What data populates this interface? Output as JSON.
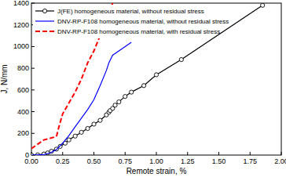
{
  "chart_data": {
    "type": "line",
    "x_label": "Remote strain, %",
    "y_label": "J, N/mm",
    "xlim": [
      0,
      2
    ],
    "ylim": [
      0,
      1400
    ],
    "xticks": [
      {
        "value": 0,
        "label": "0.00"
      },
      0.25,
      {
        "value": 0.5,
        "label": "0.50"
      },
      0.75,
      {
        "value": 1,
        "label": "1.00"
      },
      1.25,
      {
        "value": 1.5,
        "label": "1.50"
      },
      1.75,
      {
        "value": 2,
        "label": "2.00"
      }
    ],
    "yticks": [
      0,
      200,
      400,
      600,
      800,
      1000,
      1200,
      1400
    ],
    "grid": false,
    "legend": "upper left",
    "series": [
      {
        "name": "J(FE) homogeneous material, without residual stress",
        "color": "#000000",
        "marker": "circle",
        "line_style": "solid",
        "x": [
          0,
          0.05,
          0.1,
          0.13,
          0.16,
          0.2,
          0.23,
          0.27,
          0.3,
          0.35,
          0.4,
          0.45,
          0.5,
          0.55,
          0.6,
          0.62,
          0.63,
          0.65,
          0.67,
          0.7,
          0.75,
          0.8,
          0.9,
          1.0,
          1.2,
          1.85
        ],
        "values": [
          0,
          2,
          10,
          20,
          35,
          55,
          80,
          110,
          140,
          175,
          210,
          245,
          285,
          320,
          370,
          395,
          410,
          430,
          460,
          490,
          540,
          580,
          640,
          740,
          880,
          1380
        ]
      },
      {
        "name": "DNV-RP-F108 homogeneous material, without residual stress",
        "color": "#0000ff",
        "line_style": "solid",
        "x": [
          0,
          0.1,
          0.15,
          0.2,
          0.25,
          0.3,
          0.35,
          0.4,
          0.45,
          0.5,
          0.55,
          0.6,
          0.62,
          0.65,
          0.7,
          0.75,
          0.8
        ],
        "values": [
          0,
          5,
          20,
          50,
          110,
          180,
          260,
          340,
          420,
          510,
          640,
          780,
          850,
          920,
          960,
          1000,
          1040
        ]
      },
      {
        "name": "DNV-RP-F108 homogeneous material, with residual stress",
        "color": "#ff0000",
        "line_style": "dashed",
        "x": [
          0,
          0.05,
          0.1,
          0.15,
          0.2,
          0.22,
          0.25,
          0.3,
          0.35,
          0.4,
          0.45,
          0.5,
          0.55,
          0.6,
          0.65
        ],
        "values": [
          60,
          100,
          140,
          155,
          170,
          260,
          380,
          480,
          580,
          700,
          850,
          960,
          1100,
          1230,
          1400
        ]
      }
    ]
  }
}
